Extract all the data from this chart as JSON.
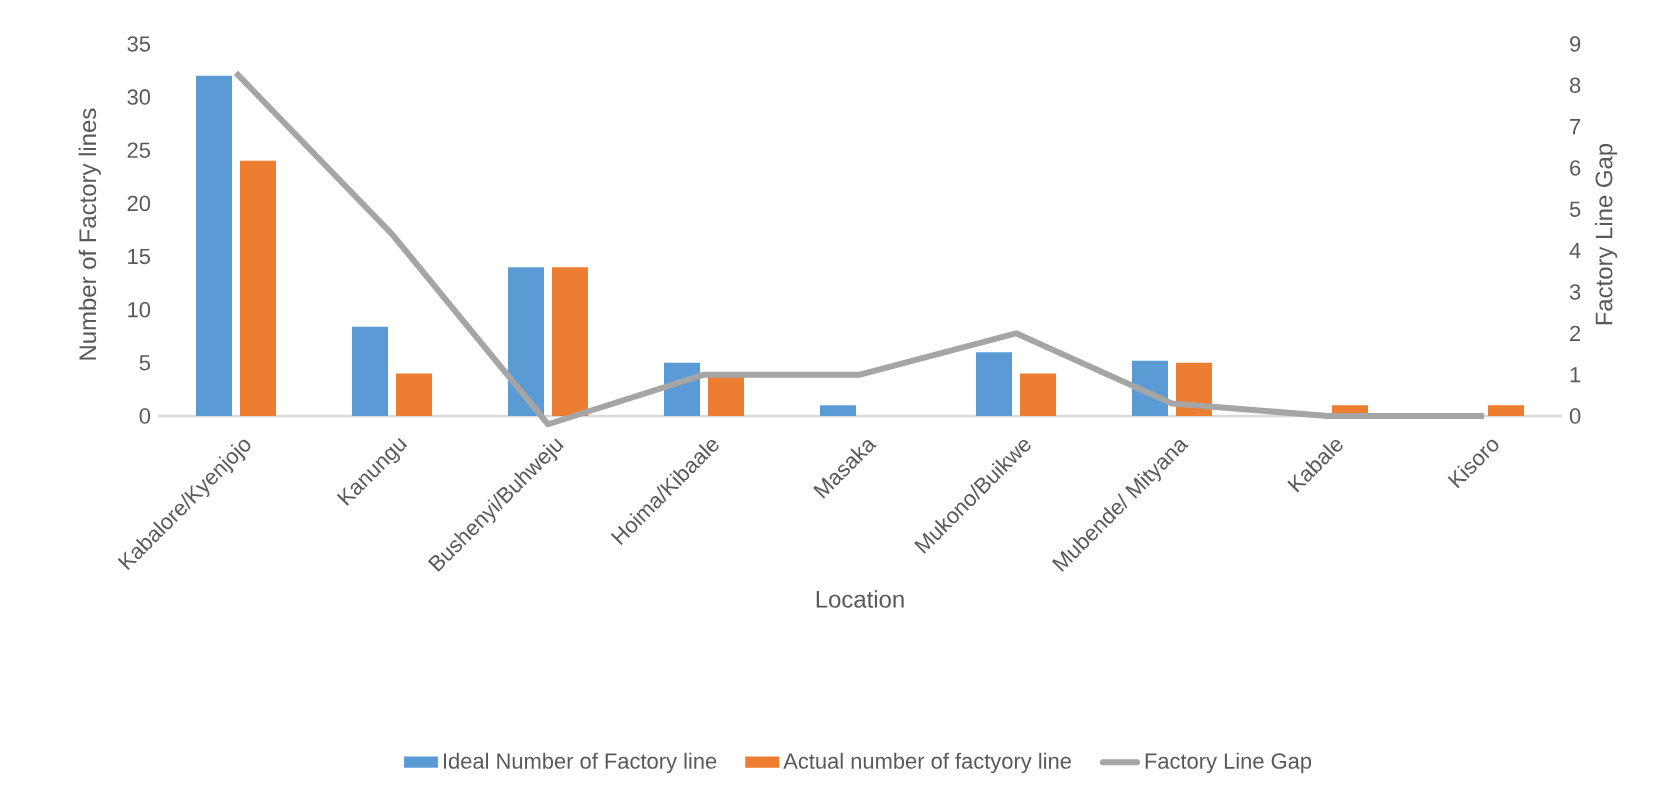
{
  "chart_data": {
    "type": "bar",
    "xlabel": "Location",
    "ylabel": "Number of Factory lines",
    "y2label": "Factory Line Gap",
    "categories": [
      "Kabalore/Kyenjojo",
      "Kanungu",
      "Bushenyi/Buhweju",
      "Hoima/Kibaale",
      "Masaka",
      "Mukono/Buikwe",
      "Mubende/ Mityana",
      "Kabale",
      "Kisoro"
    ],
    "series": [
      {
        "name": "Ideal Number of Factory line",
        "color": "#5b9bd5",
        "values": [
          32,
          8.4,
          14,
          5,
          1,
          6,
          5.2,
          0,
          0
        ]
      },
      {
        "name": "Actual number of factyory line",
        "color": "#ed7d31",
        "values": [
          24,
          4,
          14,
          4,
          0,
          4,
          5,
          1,
          1
        ]
      },
      {
        "name": "Factory Line Gap",
        "type": "line",
        "axis": "y2",
        "color": "#a5a5a5",
        "values": [
          8.3,
          4.4,
          -0.2,
          1,
          1,
          2,
          0.3,
          0,
          0
        ]
      }
    ],
    "ylim": [
      -0.875,
      35
    ],
    "yticks": [
      0,
      5,
      10,
      15,
      20,
      25,
      30,
      35
    ],
    "y2lim": [
      -0.225,
      9
    ],
    "y2ticks": [
      0,
      1,
      2,
      3,
      4,
      5,
      6,
      7,
      8,
      9
    ],
    "legend": "bottom"
  }
}
